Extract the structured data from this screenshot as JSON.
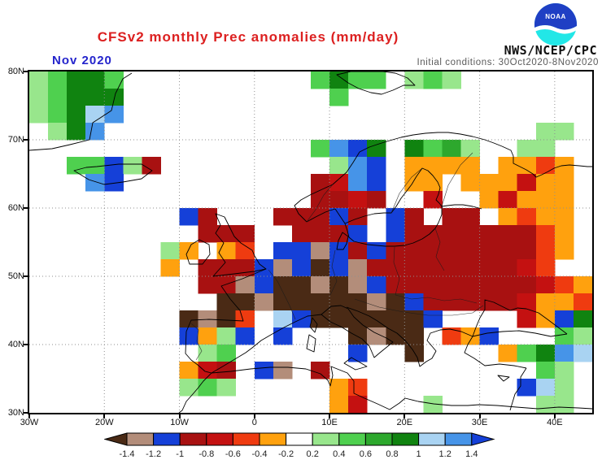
{
  "header": {
    "title": "CFSv2 monthly Prec anomalies (mm/day)",
    "date_label": "Nov 2020",
    "init_conditions": "Initial conditions: 30Oct2020-8Nov2020",
    "agency": "NWS/NCEP/CPC",
    "logo_text": "NOAA"
  },
  "colors": {
    "title": "#dc2020",
    "date": "#2424cc",
    "init": "#5a5a5a",
    "agency": "#111111",
    "logo_cyan": "#22e7e7",
    "logo_blue": "#1f3fc4"
  },
  "chart_data": {
    "type": "heatmap",
    "title": "CFSv2 monthly Prec anomalies (mm/day)",
    "period": "Nov 2020",
    "units": "mm/day",
    "projection": "lat-lon",
    "lon_min": -30,
    "lon_max": 45,
    "lat_min": 30,
    "lat_max": 80,
    "cell_size_deg": 2.5,
    "grid_style": "dotted",
    "x_ticks": [
      {
        "lon": -30,
        "label": "30W"
      },
      {
        "lon": -20,
        "label": "20W"
      },
      {
        "lon": -10,
        "label": "10W"
      },
      {
        "lon": 0,
        "label": "0"
      },
      {
        "lon": 10,
        "label": "10E"
      },
      {
        "lon": 20,
        "label": "20E"
      },
      {
        "lon": 30,
        "label": "30E"
      },
      {
        "lon": 40,
        "label": "40E"
      }
    ],
    "y_ticks": [
      {
        "lat": 80,
        "label": "80N"
      },
      {
        "lat": 70,
        "label": "70N"
      },
      {
        "lat": 60,
        "label": "60N"
      },
      {
        "lat": 50,
        "label": "50N"
      },
      {
        "lat": 40,
        "label": "40N"
      },
      {
        "lat": 30,
        "label": "30N"
      }
    ],
    "legend_labels": [
      "-1.4",
      "-1.2",
      "-1",
      "-0.8",
      "-0.6",
      "-0.4",
      "-0.2",
      "0.2",
      "0.4",
      "0.6",
      "0.8",
      "1",
      "1.2",
      "1.4"
    ],
    "legend_colors": [
      "#b38d7a",
      "#1540d8",
      "#a81111",
      "#c41111",
      "#ef3b10",
      "#ffa10e",
      "#ffffff",
      "#98e68c",
      "#4fd04f",
      "#2da82d",
      "#108310",
      "#a9d3f2",
      "#4694e8"
    ],
    "legend_arrow_left_color": "#4a2a15",
    "legend_arrow_right_color": "#1540d8",
    "palette": {
      ".": "#ffffff",
      "K": "#4a2a15",
      "T": "#b38d7a",
      "B": "#1540d8",
      "R": "#a81111",
      "r": "#c41111",
      "o": "#ef3b10",
      "O": "#ffa10e",
      "g": "#98e68c",
      "G": "#4fd04f",
      "D": "#2da82d",
      "E": "#108310",
      "l": "#a9d3f2",
      "s": "#4694e8"
    },
    "palette_value_ranges": {
      "K": "< -1.4",
      "T": "-1.4 to -1.2",
      "B": "-1.2 to -1",
      "R": "-1 to -0.8",
      "r": "-0.8 to -0.6",
      "o": "-0.6 to -0.4",
      "O": "-0.4 to -0.2",
      ".": "-0.2 to 0.2",
      "g": "0.2 to 0.4",
      "G": "0.4 to 0.6",
      "D": "0.6 to 0.8",
      "E": "0.8 to 1",
      "l": "1 to 1.2",
      "s": "1.2 to 1.4"
    },
    "grid_rows": [
      "gGEEG..........GEGG.gGg.......",
      "gGEEE...........G.............",
      "gGEls.........................",
      ".gEs.......................gg.",
      "...............GsBE.EGDg..gg..",
      "..GGBgR.........gsB.OOOO.OOoO.",
      "...sB..........RrsB.OO.OOOrOO.",
      "...............RRrR..r..OrOOO.",
      "........BR...RRRBR.BR.RR.OoOO.",
      ".........RRR..RRRB.BRRRRRRRoO.",
      ".......gO.Oo.BBTBRBRRRRRRRRoO.",
      ".......O.RRRBTBKBTRRRRRRRRro..",
      ".........RRTBKKTKTBRRRRRRRRroO",
      "..........KKTKKKKKTKBRRRRRrOOo",
      "........KTKo.lBKKKKKKB....rOBE",
      "........BOgB.B...KTKK.oOB...Gg",
      ".........gG......B..K....OGEsl",
      "........OrR.BT.R...........Gg.",
      "........gGg.....Oo........Blg.",
      "................Or...g.....gg."
    ]
  }
}
